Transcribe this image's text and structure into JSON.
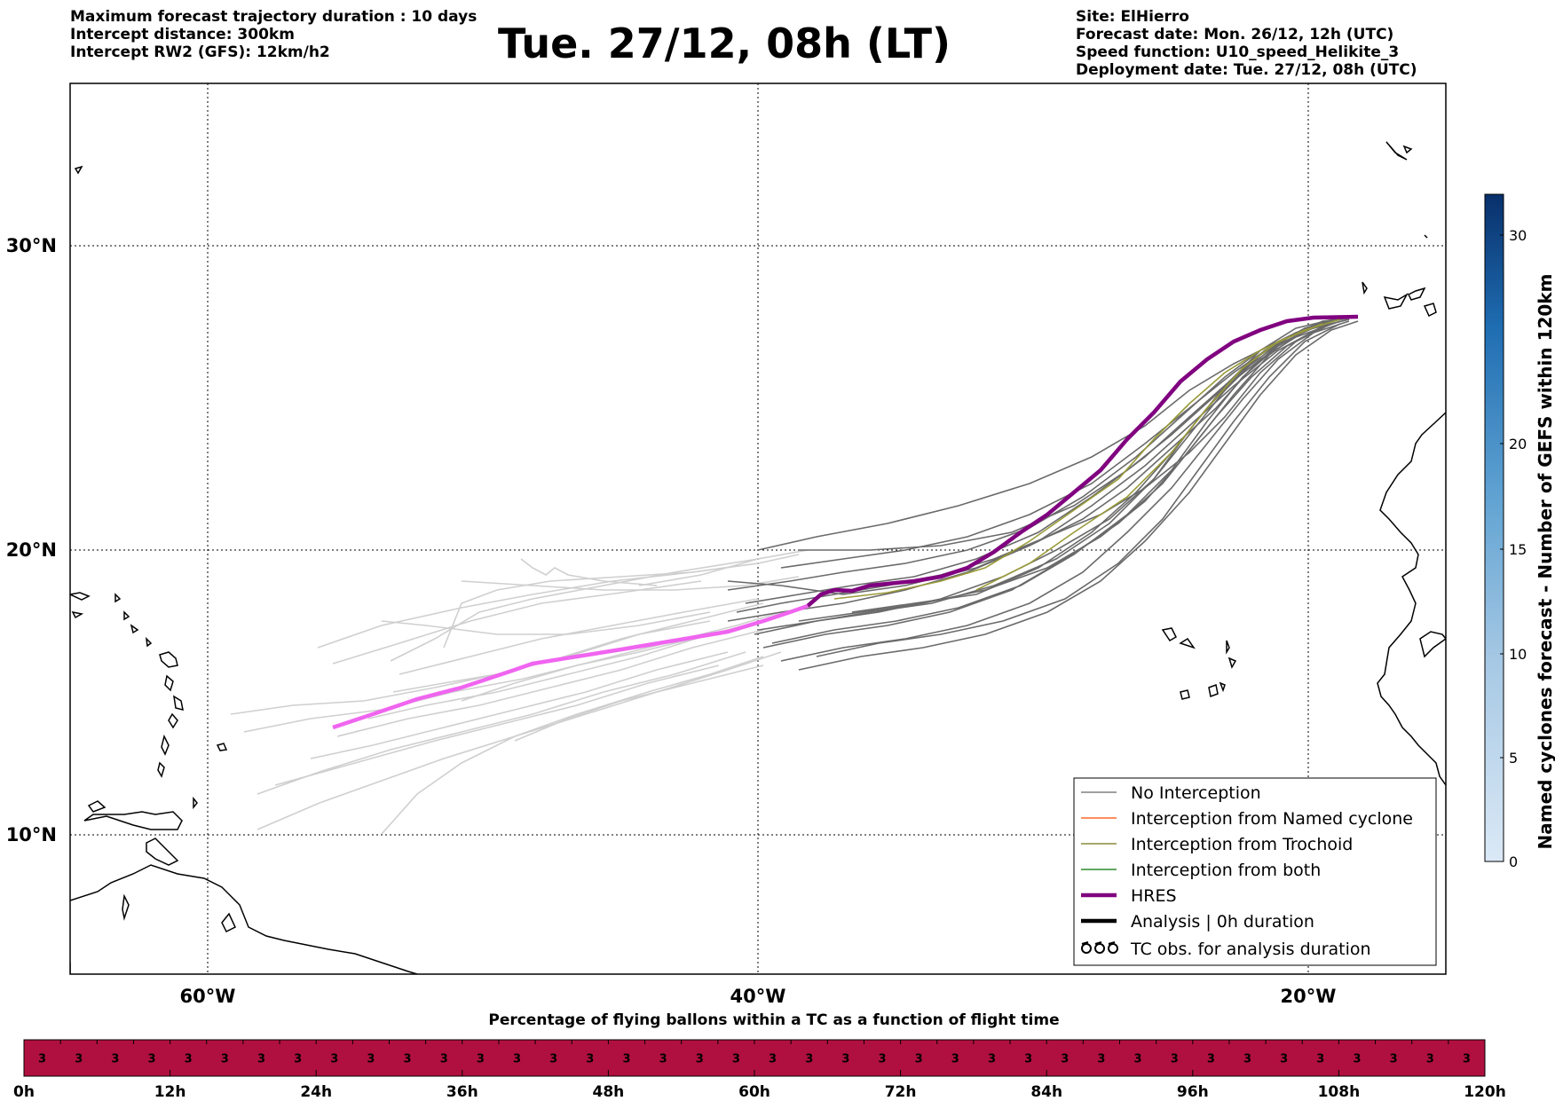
{
  "header": {
    "left_lines": [
      "Maximum forecast trajectory duration : 10 days",
      "Intercept distance: 300km",
      "Intercept RW2 (GFS):  12km/h2"
    ],
    "title": "Tue. 27/12, 08h (LT)",
    "right_lines": [
      "Site: ElHierro",
      "Forecast date: Mon. 26/12, 12h (UTC)",
      "Speed function: U10_speed_Helikite_3",
      "Deployment date: Tue. 27/12, 08h (UTC)"
    ]
  },
  "map": {
    "lat_labels": [
      "30°N",
      "20°N",
      "10°N"
    ],
    "lon_labels": [
      "60°W",
      "40°W",
      "20°W"
    ],
    "gridline_color": "#000000"
  },
  "legend": {
    "items": [
      {
        "label": "No Interception",
        "color": "#808080"
      },
      {
        "label": "Interception from Named cyclone",
        "color": "#ff6a2a"
      },
      {
        "label": "Interception from Trochoid",
        "color": "#8a8a3a"
      },
      {
        "label": "Interception from both",
        "color": "#2e8b2e"
      },
      {
        "label": "HRES",
        "color": "#800080"
      },
      {
        "label": "Analysis | 0h duration",
        "color": "#000000"
      },
      {
        "label": "TC obs. for analysis duration",
        "color": "#000000",
        "icon": "tc-symbol-icon"
      }
    ]
  },
  "colorbar": {
    "label": "Named cyclones forecast - Number of GEFS within 120km",
    "ticks": [
      "0",
      "5",
      "10",
      "15",
      "20",
      "30"
    ],
    "colors": [
      "#dbe9f6",
      "#08306b"
    ]
  },
  "timeline": {
    "title": "Percentage of flying ballons within a TC as a function of flight time",
    "cell_value": "3",
    "cell_count": 40,
    "tick_labels": [
      "0h",
      "12h",
      "24h",
      "36h",
      "48h",
      "60h",
      "72h",
      "84h",
      "96h",
      "108h",
      "120h"
    ],
    "bar_color": "#b0103f"
  }
}
